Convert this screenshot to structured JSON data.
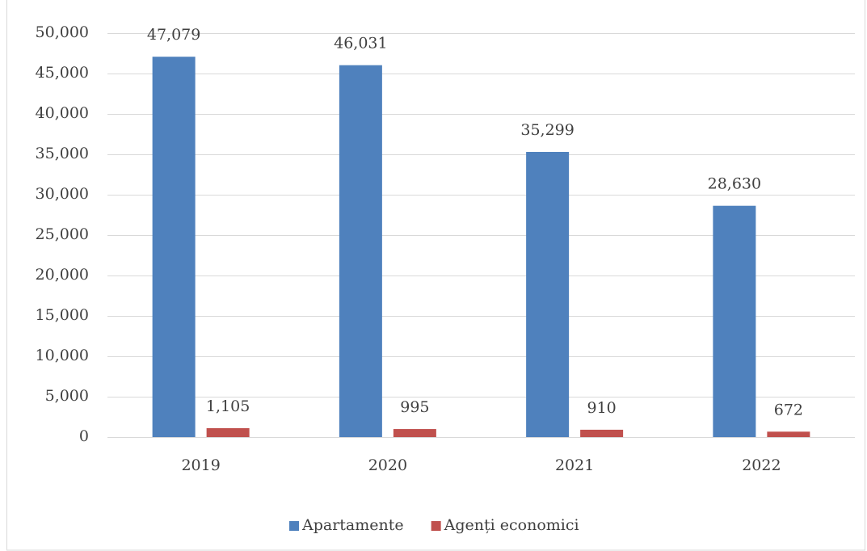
{
  "chart_data": {
    "type": "bar",
    "categories": [
      "2019",
      "2020",
      "2021",
      "2022"
    ],
    "series": [
      {
        "name": "Apartamente",
        "color": "#4f81bd",
        "values": [
          47079,
          46031,
          35299,
          28630
        ],
        "value_labels": [
          "47,079",
          "46,031",
          "35,299",
          "28,630"
        ]
      },
      {
        "name": "Agenți economici",
        "color": "#c0504d",
        "values": [
          1105,
          995,
          910,
          672
        ],
        "value_labels": [
          "1,105",
          "995",
          "910",
          "672"
        ]
      }
    ],
    "ylim": [
      0,
      50000
    ],
    "yticks": [
      0,
      {
        "value": 5000,
        "label": "5,000"
      },
      {
        "value": 10000,
        "label": "10,000"
      },
      {
        "value": 15000,
        "label": "15,000"
      },
      {
        "value": 20000,
        "label": "20,000"
      },
      {
        "value": 25000,
        "label": "25,000"
      },
      {
        "value": 30000,
        "label": "30,000"
      },
      {
        "value": 35000,
        "label": "35,000"
      },
      {
        "value": 40000,
        "label": "40,000"
      },
      {
        "value": 45000,
        "label": "45,000"
      },
      {
        "value": 50000,
        "label": "50,000"
      }
    ],
    "grid": true,
    "legend": "bottom"
  }
}
